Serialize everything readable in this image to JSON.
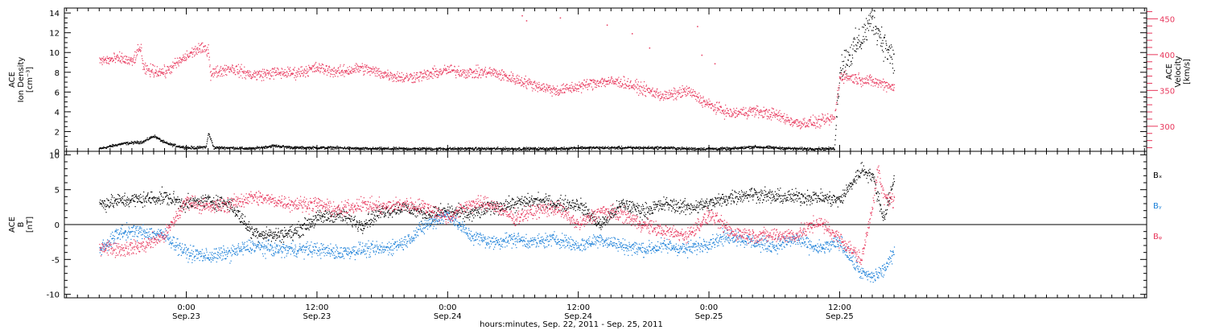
{
  "colors": {
    "density": "#000000",
    "velocity": "#e8375c",
    "bx": "#000000",
    "by": "#1a7fd8",
    "bz": "#e8375c",
    "axis": "#000000"
  },
  "chart_data": [
    {
      "type": "scatter",
      "panel": "top",
      "left_axis": {
        "label_lines": [
          "ACE",
          "Ion Density",
          "[cm⁻³]"
        ],
        "range": [
          0,
          14.5
        ],
        "major_ticks": [
          0,
          2,
          4,
          6,
          8,
          10,
          12,
          14
        ],
        "minor_step": 0.5
      },
      "right_axis": {
        "label_lines": [
          "ACE",
          "Velocity",
          "[km/s]"
        ],
        "range": [
          265,
          465
        ],
        "major_ticks": [
          300,
          350,
          400,
          450
        ],
        "minor_step": 10,
        "color": "#e8375c"
      },
      "series": [
        {
          "key": "density",
          "axis": "left",
          "x": [
            -8,
            -6,
            -4,
            -3,
            -2,
            -1,
            0,
            1,
            1.8,
            2,
            2.5,
            4,
            6,
            8,
            10,
            12,
            14,
            16,
            18,
            20,
            22,
            24,
            26,
            28,
            30,
            32,
            34,
            36,
            38,
            40,
            42,
            44,
            46,
            48,
            50,
            52,
            54,
            56,
            58,
            59.5,
            60,
            61,
            62,
            63,
            64,
            65
          ],
          "y": [
            0.3,
            0.8,
            1.0,
            1.6,
            0.9,
            0.6,
            0.4,
            0.4,
            0.5,
            1.9,
            0.4,
            0.4,
            0.3,
            0.6,
            0.4,
            0.4,
            0.4,
            0.3,
            0.3,
            0.3,
            0.3,
            0.3,
            0.3,
            0.3,
            0.3,
            0.3,
            0.3,
            0.4,
            0.4,
            0.4,
            0.4,
            0.4,
            0.3,
            0.3,
            0.3,
            0.5,
            0.4,
            0.3,
            0.3,
            0.3,
            8.5,
            10.0,
            11.5,
            13.5,
            11.0,
            9.0
          ]
        },
        {
          "key": "velocity",
          "axis": "right",
          "x": [
            -8,
            -6,
            -5,
            -4.2,
            -4,
            -2,
            0,
            1,
            2,
            2.2,
            4,
            6,
            8,
            10,
            12,
            14,
            16,
            18,
            20,
            22,
            24,
            26,
            28,
            30,
            32,
            34,
            36,
            38,
            40,
            42,
            44,
            46,
            48,
            50,
            52,
            54,
            56,
            58,
            59.5,
            60,
            62,
            64,
            65
          ],
          "y": [
            392,
            395,
            390,
            412,
            380,
            376,
            398,
            408,
            408,
            374,
            382,
            372,
            375,
            375,
            382,
            376,
            382,
            374,
            368,
            372,
            379,
            375,
            376,
            367,
            358,
            350,
            356,
            363,
            362,
            352,
            342,
            350,
            330,
            318,
            322,
            317,
            305,
            306,
            312,
            371,
            366,
            360,
            355
          ]
        }
      ],
      "overlay_points": {
        "velocity": {
          "x": [
            30.8,
            31.2,
            34.3,
            38.6,
            40.9,
            42.5,
            46.9,
            47.3,
            48.5
          ],
          "y": [
            455,
            448,
            452,
            442,
            430,
            410,
            440,
            400,
            388
          ]
        }
      }
    },
    {
      "type": "scatter",
      "panel": "bottom",
      "left_axis": {
        "label_lines": [
          "ACE",
          "B",
          "[nT]"
        ],
        "range": [
          -10.5,
          10.5
        ],
        "major_ticks": [
          -10,
          -5,
          0,
          5,
          10
        ],
        "minor_step": 1
      },
      "zero_line": true,
      "series": [
        {
          "key": "bx",
          "name": "Bₓ",
          "x": [
            -8,
            -6,
            -4,
            -2,
            0,
            2,
            4,
            6,
            8,
            10,
            12,
            14,
            16,
            18,
            20,
            22,
            24,
            26,
            28,
            30,
            32,
            34,
            36,
            38,
            40,
            42,
            44,
            46,
            48,
            50,
            52,
            54,
            56,
            58,
            60,
            62,
            62.5,
            63,
            64,
            65
          ],
          "y": [
            3.0,
            3.5,
            3.7,
            4.0,
            3.0,
            3.5,
            3.0,
            -1.0,
            -1.5,
            -1.0,
            1.0,
            1.5,
            0.0,
            2.0,
            2.5,
            1.5,
            2.0,
            1.5,
            2.5,
            3.0,
            3.5,
            3.0,
            3.0,
            0.0,
            3.0,
            2.0,
            3.0,
            2.5,
            3.0,
            4.0,
            4.5,
            4.0,
            4.0,
            4.0,
            3.5,
            8.0,
            7.5,
            7.0,
            1.0,
            6.5
          ]
        },
        {
          "key": "by",
          "name": "Bᵧ",
          "x": [
            -8,
            -6,
            -4,
            -2,
            0,
            2,
            4,
            6,
            8,
            10,
            12,
            14,
            16,
            18,
            20,
            22,
            24,
            26,
            28,
            30,
            32,
            34,
            36,
            38,
            40,
            42,
            44,
            46,
            48,
            50,
            52,
            54,
            56,
            58,
            60,
            62,
            63,
            64,
            65
          ],
          "y": [
            -3.5,
            -1.0,
            -1.0,
            -1.5,
            -4.0,
            -4.5,
            -4.0,
            -3.0,
            -3.5,
            -3.5,
            -3.5,
            -4.0,
            -3.5,
            -3.5,
            -2.5,
            0.0,
            1.5,
            -1.5,
            -2.5,
            -2.0,
            -2.5,
            -2.0,
            -3.0,
            -2.0,
            -3.0,
            -3.5,
            -3.0,
            -3.5,
            -2.5,
            -1.5,
            -2.5,
            -3.0,
            -2.0,
            -3.5,
            -2.5,
            -7.0,
            -7.5,
            -6.5,
            -4.0
          ]
        },
        {
          "key": "bz",
          "name": "Bᵩ",
          "x": [
            -8,
            -6,
            -4,
            -2,
            0,
            2,
            4,
            6,
            8,
            10,
            12,
            14,
            16,
            18,
            20,
            22,
            24,
            26,
            28,
            30,
            32,
            34,
            36,
            38,
            40,
            42,
            44,
            46,
            48,
            50,
            52,
            54,
            56,
            58,
            60,
            62,
            63,
            63.5,
            64,
            65
          ],
          "y": [
            -3.0,
            -3.5,
            -3.0,
            -1.5,
            3.5,
            2.5,
            3.0,
            4.0,
            3.5,
            3.0,
            3.0,
            2.0,
            3.0,
            2.5,
            3.0,
            2.5,
            1.0,
            3.0,
            3.0,
            1.0,
            2.0,
            2.5,
            0.0,
            2.0,
            1.5,
            0.0,
            -1.0,
            -1.5,
            1.5,
            -1.0,
            -1.5,
            -1.5,
            -1.5,
            0.5,
            -2.0,
            -5.0,
            3.0,
            8.0,
            4.0,
            3.5
          ]
        }
      ],
      "legend": {
        "placement": "right",
        "items": [
          {
            "key": "bx",
            "text": "Bₓ"
          },
          {
            "key": "by",
            "text": "Bᵧ"
          },
          {
            "key": "bz",
            "text": "Bᵩ"
          }
        ]
      }
    }
  ],
  "x_axis": {
    "unit": "hours from 0:00 Sep.23, 2011",
    "range": [
      -11.2,
      88.2
    ],
    "major_ticks": [
      0,
      12,
      24,
      36,
      48,
      60
    ],
    "tick_labels": [
      [
        "0:00",
        "Sep.23"
      ],
      [
        "12:00",
        "Sep.23"
      ],
      [
        "0:00",
        "Sep.24"
      ],
      [
        "12:00",
        "Sep.24"
      ],
      [
        "0:00",
        "Sep.25"
      ],
      [
        "12:00",
        "Sep.25"
      ]
    ],
    "minor_step": 1,
    "title": "hours:minutes, Sep. 22, 2011 - Sep. 25, 2011"
  }
}
